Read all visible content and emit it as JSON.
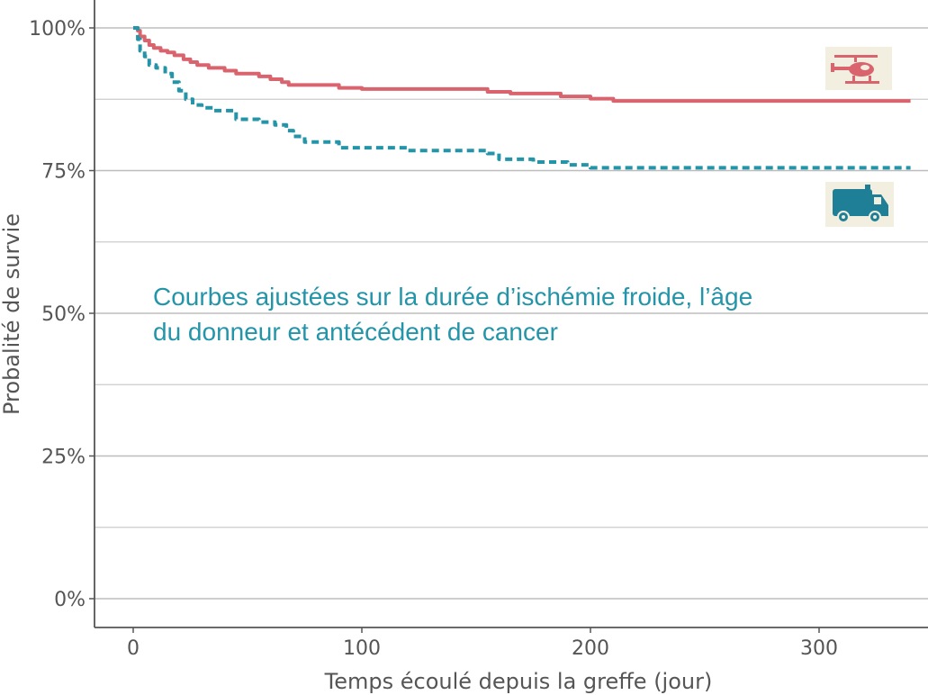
{
  "chart_data": {
    "type": "line",
    "xlabel": "Temps écoulé depuis la greffe (jour)",
    "ylabel": "Probalité de survie",
    "xlim": [
      -17,
      345
    ],
    "ylim": [
      -0.05,
      1.03
    ],
    "x_ticks": [
      0,
      100,
      200,
      300
    ],
    "x_tick_labels": [
      "0",
      "100",
      "200",
      "300"
    ],
    "y_ticks": [
      0,
      0.25,
      0.5,
      0.75,
      1.0
    ],
    "y_tick_labels": [
      "0%",
      "25%",
      "50%",
      "75%",
      "100%"
    ],
    "y_minor_gridlines": [
      0.125,
      0.375,
      0.625,
      0.875
    ],
    "grid": "horizontal",
    "annotation_lines": [
      "Courbes ajustées sur la durée d’ischémie froide, l’âge",
      "du donneur et antécédent de cancer"
    ],
    "series": [
      {
        "icon": "helicopter-icon",
        "color": "#d9646e",
        "style": "solid",
        "points": [
          [
            0,
            1.0
          ],
          [
            2,
            0.995
          ],
          [
            3,
            0.985
          ],
          [
            5,
            0.978
          ],
          [
            7,
            0.97
          ],
          [
            9,
            0.965
          ],
          [
            12,
            0.96
          ],
          [
            15,
            0.957
          ],
          [
            18,
            0.952
          ],
          [
            22,
            0.945
          ],
          [
            25,
            0.94
          ],
          [
            28,
            0.935
          ],
          [
            33,
            0.93
          ],
          [
            40,
            0.925
          ],
          [
            45,
            0.92
          ],
          [
            55,
            0.915
          ],
          [
            60,
            0.91
          ],
          [
            65,
            0.905
          ],
          [
            68,
            0.9
          ],
          [
            90,
            0.895
          ],
          [
            100,
            0.893
          ],
          [
            155,
            0.888
          ],
          [
            165,
            0.885
          ],
          [
            187,
            0.88
          ],
          [
            200,
            0.876
          ],
          [
            210,
            0.872
          ],
          [
            340,
            0.872
          ]
        ]
      },
      {
        "icon": "ambulance-icon",
        "color": "#2495a8",
        "style": "dashed",
        "points": [
          [
            0,
            1.0
          ],
          [
            2,
            0.98
          ],
          [
            3,
            0.96
          ],
          [
            5,
            0.95
          ],
          [
            7,
            0.935
          ],
          [
            10,
            0.93
          ],
          [
            14,
            0.92
          ],
          [
            17,
            0.905
          ],
          [
            20,
            0.89
          ],
          [
            23,
            0.875
          ],
          [
            26,
            0.865
          ],
          [
            30,
            0.86
          ],
          [
            35,
            0.855
          ],
          [
            45,
            0.84
          ],
          [
            55,
            0.835
          ],
          [
            62,
            0.83
          ],
          [
            67,
            0.82
          ],
          [
            70,
            0.81
          ],
          [
            75,
            0.8
          ],
          [
            85,
            0.8
          ],
          [
            90,
            0.79
          ],
          [
            120,
            0.785
          ],
          [
            155,
            0.78
          ],
          [
            160,
            0.77
          ],
          [
            175,
            0.765
          ],
          [
            190,
            0.76
          ],
          [
            200,
            0.755
          ],
          [
            340,
            0.755
          ]
        ]
      }
    ]
  }
}
